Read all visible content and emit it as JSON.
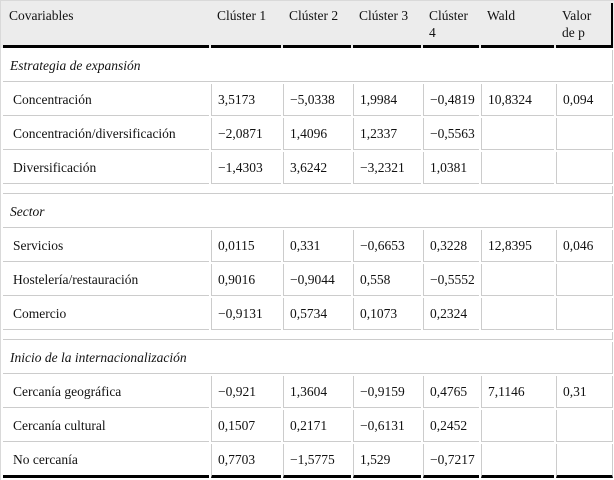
{
  "table": {
    "name": "covariates-cluster-table",
    "columns": [
      "Covariables",
      "Clúster 1",
      "Clúster 2",
      "Clúster 3",
      "Clúster 4",
      "Wald",
      "Valor de p"
    ],
    "sections": [
      {
        "title": "Estrategia de expansión",
        "rows": [
          {
            "label": "Concentración",
            "values": [
              "3,5173",
              "−5,0338",
              "1,9984",
              "−0,4819",
              "10,8324",
              "0,094"
            ]
          },
          {
            "label": "Concentración/diversificación",
            "values": [
              "−2,0871",
              "1,4096",
              "1,2337",
              "−0,5563",
              "",
              ""
            ]
          },
          {
            "label": "Diversificación",
            "values": [
              "−1,4303",
              "3,6242",
              "−3,2321",
              "1,0381",
              "",
              ""
            ]
          }
        ]
      },
      {
        "title": "Sector",
        "rows": [
          {
            "label": "Servicios",
            "values": [
              "0,0115",
              "0,331",
              "−0,6653",
              "0,3228",
              "12,8395",
              "0,046"
            ]
          },
          {
            "label": "Hostelería/restauración",
            "values": [
              "0,9016",
              "−0,9044",
              "0,558",
              "−0,5552",
              "",
              ""
            ]
          },
          {
            "label": "Comercio",
            "values": [
              "−0,9131",
              "0,5734",
              "0,1073",
              "0,2324",
              "",
              ""
            ]
          }
        ]
      },
      {
        "title": "Inicio de la internacionalización",
        "rows": [
          {
            "label": "Cercanía geográfica",
            "values": [
              "−0,921",
              "1,3604",
              "−0,9159",
              "0,4765",
              "7,1146",
              "0,31"
            ]
          },
          {
            "label": "Cercanía cultural",
            "values": [
              "0,1507",
              "0,2171",
              "−0,6131",
              "0,2452",
              "",
              ""
            ]
          },
          {
            "label": "No cercanía",
            "values": [
              "0,7703",
              "−1,5775",
              "1,529",
              "−0,7217",
              "",
              ""
            ]
          }
        ]
      }
    ]
  },
  "colors": {
    "header_background": "#ececec",
    "grid_line": "#cccccc",
    "heavy_rule": "#000000",
    "text": "#111111",
    "body_background": "#ffffff"
  }
}
